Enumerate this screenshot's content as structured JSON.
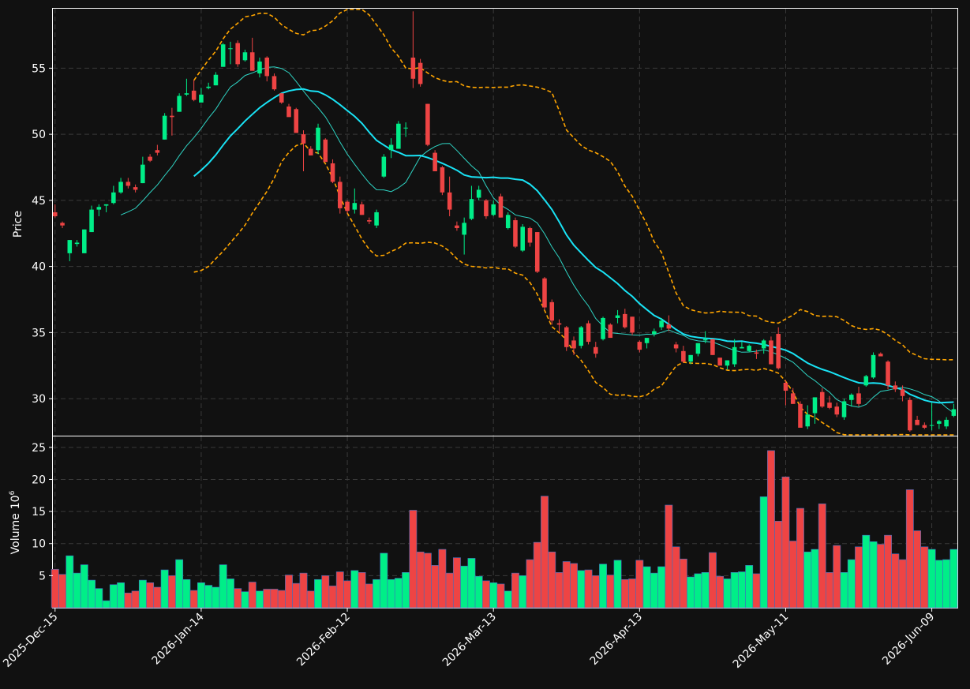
{
  "chart_data": {
    "type": "candlestick",
    "price_panel": {
      "ylabel": "Price",
      "ylim": [
        27.2,
        59.5
      ],
      "yticks": [
        30,
        35,
        40,
        45,
        50,
        55
      ],
      "grid": true
    },
    "volume_panel": {
      "ylabel": "Volume",
      "ylabel_exponent": "6",
      "ylim": [
        0,
        26.7
      ],
      "yticks": [
        5,
        10,
        15,
        20,
        25
      ],
      "grid": true
    },
    "xticks": [
      {
        "index": 0,
        "label": "2025-Dec-15"
      },
      {
        "index": 20,
        "label": "2026-Jan-14"
      },
      {
        "index": 40,
        "label": "2026-Feb-12"
      },
      {
        "index": 60,
        "label": "2026-Mar-13"
      },
      {
        "index": 80,
        "label": "2026-Apr-13"
      },
      {
        "index": 100,
        "label": "2026-May-11"
      },
      {
        "index": 120,
        "label": "2026-Jun-09"
      }
    ],
    "xlim": [
      -0.3,
      123.5
    ],
    "colors": {
      "background": "#111111",
      "up": "#00ee88",
      "down": "#ee4444",
      "volume_edge": "#3f6fbf",
      "sma_fast": "#2fd4c4",
      "sma_slow": "#19e3f5",
      "bands": "#ffa500",
      "frame": "#ffffff",
      "grid": "#3a3a3a"
    },
    "overlays": [
      {
        "kind": "sma",
        "period": 10
      },
      {
        "kind": "sma",
        "period": 20
      },
      {
        "kind": "bollinger",
        "period": 20,
        "std": 2
      }
    ],
    "candles": [
      [
        44.1,
        44.7,
        43.7,
        43.8,
        6.0
      ],
      [
        43.3,
        43.4,
        42.9,
        43.1,
        5.2
      ],
      [
        41.0,
        42.0,
        40.4,
        42.0,
        8.1
      ],
      [
        41.7,
        42.0,
        41.5,
        41.8,
        5.4
      ],
      [
        41.0,
        42.8,
        41.0,
        42.8,
        6.7
      ],
      [
        42.6,
        44.6,
        42.6,
        44.3,
        4.3
      ],
      [
        44.3,
        44.7,
        43.8,
        44.5,
        3.0
      ],
      [
        44.6,
        44.7,
        44.1,
        44.7,
        1.1
      ],
      [
        44.8,
        46.1,
        44.7,
        45.6,
        3.6
      ],
      [
        45.6,
        46.7,
        45.5,
        46.4,
        3.9
      ],
      [
        46.4,
        46.7,
        45.9,
        46.1,
        2.3
      ],
      [
        46.0,
        46.2,
        45.6,
        45.8,
        2.6
      ],
      [
        46.3,
        48.3,
        46.3,
        47.7,
        4.3
      ],
      [
        48.3,
        48.5,
        47.9,
        48.0,
        3.9
      ],
      [
        48.8,
        49.2,
        48.4,
        48.6,
        3.2
      ],
      [
        49.6,
        51.6,
        49.6,
        51.4,
        5.9
      ],
      [
        51.4,
        52.0,
        49.9,
        51.3,
        5.0
      ],
      [
        51.7,
        53.1,
        51.7,
        52.9,
        7.5
      ],
      [
        53.0,
        54.2,
        52.9,
        53.1,
        4.4
      ],
      [
        53.3,
        54.1,
        52.5,
        52.6,
        2.7
      ],
      [
        52.4,
        53.5,
        52.4,
        53.0,
        3.9
      ],
      [
        53.5,
        53.9,
        53.4,
        53.6,
        3.5
      ],
      [
        53.7,
        54.7,
        53.7,
        54.5,
        3.2
      ],
      [
        55.1,
        56.9,
        55.1,
        56.8,
        6.7
      ],
      [
        56.5,
        57.0,
        55.3,
        56.5,
        4.5
      ],
      [
        56.9,
        57.1,
        55.1,
        55.3,
        3.0
      ],
      [
        55.6,
        56.4,
        55.5,
        56.2,
        2.5
      ],
      [
        56.2,
        57.3,
        55.0,
        54.8,
        4.0
      ],
      [
        54.6,
        55.8,
        54.3,
        55.5,
        2.6
      ],
      [
        55.8,
        55.9,
        54.0,
        54.4,
        2.9
      ],
      [
        54.4,
        54.6,
        53.3,
        53.4,
        2.9
      ],
      [
        53.1,
        53.1,
        52.3,
        52.4,
        2.7
      ],
      [
        52.1,
        52.3,
        51.4,
        51.3,
        5.1
      ],
      [
        51.9,
        52.0,
        50.1,
        50.1,
        3.8
      ],
      [
        50.0,
        50.3,
        47.2,
        49.3,
        5.4
      ],
      [
        48.9,
        49.1,
        48.4,
        48.4,
        2.6
      ],
      [
        48.8,
        50.8,
        48.5,
        50.5,
        4.4
      ],
      [
        49.6,
        49.7,
        48.0,
        47.9,
        5.0
      ],
      [
        47.8,
        48.1,
        46.3,
        46.4,
        3.4
      ],
      [
        46.4,
        46.8,
        44.0,
        44.4,
        5.6
      ],
      [
        44.9,
        45.0,
        44.0,
        44.2,
        4.2
      ],
      [
        44.3,
        45.9,
        44.0,
        44.8,
        5.8
      ],
      [
        44.7,
        44.9,
        43.9,
        43.9,
        5.5
      ],
      [
        43.5,
        43.7,
        43.2,
        43.4,
        3.7
      ],
      [
        43.1,
        44.3,
        42.9,
        44.1,
        4.4
      ],
      [
        46.8,
        48.5,
        46.7,
        48.3,
        8.5
      ],
      [
        48.8,
        49.7,
        48.2,
        49.2,
        4.4
      ],
      [
        48.9,
        51.0,
        48.9,
        50.8,
        4.6
      ],
      [
        50.5,
        50.9,
        49.8,
        50.5,
        5.5
      ],
      [
        55.8,
        59.3,
        53.5,
        54.2,
        15.2
      ],
      [
        55.4,
        55.7,
        53.6,
        53.8,
        8.7
      ],
      [
        52.3,
        52.3,
        49.1,
        49.2,
        8.5
      ],
      [
        48.6,
        48.8,
        47.2,
        47.2,
        6.6
      ],
      [
        47.5,
        47.6,
        45.4,
        45.6,
        9.1
      ],
      [
        45.6,
        46.8,
        43.8,
        44.3,
        5.4
      ],
      [
        43.1,
        43.4,
        42.7,
        42.9,
        7.8
      ],
      [
        42.4,
        43.7,
        40.9,
        43.3,
        6.5
      ],
      [
        43.6,
        46.1,
        43.5,
        45.1,
        7.7
      ],
      [
        45.2,
        46.1,
        45.0,
        45.8,
        4.9
      ],
      [
        45.0,
        45.1,
        43.6,
        43.8,
        4.2
      ],
      [
        43.9,
        45.0,
        43.8,
        44.7,
        3.9
      ],
      [
        45.3,
        45.5,
        43.7,
        43.7,
        3.7
      ],
      [
        42.9,
        44.1,
        42.8,
        43.9,
        2.6
      ],
      [
        43.5,
        43.7,
        41.4,
        41.5,
        5.4
      ],
      [
        41.2,
        43.2,
        41.1,
        43.0,
        5.0
      ],
      [
        42.9,
        43.0,
        41.5,
        41.8,
        7.5
      ],
      [
        42.6,
        42.6,
        39.5,
        39.6,
        10.2
      ],
      [
        39.1,
        39.2,
        36.7,
        36.9,
        17.4
      ],
      [
        37.3,
        37.5,
        35.6,
        35.9,
        8.7
      ],
      [
        35.7,
        36.0,
        35.0,
        35.6,
        5.5
      ],
      [
        35.4,
        35.5,
        33.6,
        33.9,
        7.2
      ],
      [
        34.4,
        34.7,
        33.3,
        33.8,
        6.9
      ],
      [
        34.0,
        35.5,
        33.8,
        35.4,
        5.8
      ],
      [
        35.7,
        35.9,
        34.1,
        34.3,
        5.9
      ],
      [
        33.9,
        34.3,
        33.1,
        33.4,
        5.0
      ],
      [
        34.5,
        36.2,
        34.4,
        36.1,
        6.8
      ],
      [
        35.6,
        35.7,
        34.6,
        34.6,
        5.1
      ],
      [
        36.1,
        36.7,
        35.7,
        36.3,
        7.4
      ],
      [
        36.4,
        36.8,
        35.3,
        35.4,
        4.4
      ],
      [
        36.2,
        36.2,
        34.8,
        35.0,
        4.5
      ],
      [
        34.3,
        34.4,
        33.5,
        33.7,
        7.4
      ],
      [
        34.2,
        34.5,
        33.8,
        34.6,
        6.4
      ],
      [
        34.9,
        35.3,
        34.7,
        35.1,
        5.4
      ],
      [
        35.4,
        36.1,
        35.2,
        35.9,
        6.4
      ],
      [
        35.6,
        36.3,
        35.1,
        35.3,
        16.0
      ],
      [
        34.1,
        34.3,
        33.5,
        33.8,
        9.5
      ],
      [
        33.6,
        34.0,
        32.7,
        32.8,
        7.6
      ],
      [
        32.8,
        33.3,
        32.6,
        33.3,
        4.8
      ],
      [
        33.4,
        34.2,
        33.2,
        34.2,
        5.3
      ],
      [
        34.4,
        35.1,
        34.2,
        34.5,
        5.5
      ],
      [
        34.5,
        34.5,
        33.3,
        33.3,
        8.6
      ],
      [
        33.1,
        33.1,
        32.5,
        32.5,
        4.9
      ],
      [
        32.5,
        32.9,
        32.2,
        32.9,
        4.5
      ],
      [
        32.6,
        34.5,
        32.4,
        33.9,
        5.5
      ],
      [
        33.8,
        34.3,
        33.8,
        33.9,
        5.6
      ],
      [
        33.6,
        34.1,
        33.5,
        34.0,
        6.6
      ],
      [
        33.5,
        33.7,
        33.0,
        33.4,
        5.3
      ],
      [
        33.8,
        34.5,
        33.4,
        34.4,
        17.3
      ],
      [
        34.4,
        34.7,
        32.6,
        32.6,
        24.5
      ],
      [
        34.9,
        35.4,
        32.2,
        32.3,
        13.5
      ],
      [
        31.2,
        31.4,
        29.5,
        30.6,
        20.4
      ],
      [
        30.4,
        30.8,
        29.6,
        29.6,
        10.4
      ],
      [
        29.6,
        29.8,
        27.9,
        27.8,
        15.5
      ],
      [
        27.9,
        29.5,
        27.7,
        28.8,
        8.7
      ],
      [
        28.9,
        30.1,
        28.1,
        30.1,
        9.1
      ],
      [
        30.5,
        30.8,
        29.3,
        29.4,
        16.2
      ],
      [
        29.7,
        30.2,
        29.2,
        29.3,
        5.5
      ],
      [
        29.4,
        29.7,
        28.6,
        28.8,
        9.7
      ],
      [
        28.6,
        30.0,
        28.4,
        29.8,
        5.5
      ],
      [
        29.9,
        30.4,
        29.4,
        30.3,
        7.5
      ],
      [
        30.4,
        30.9,
        29.4,
        29.6,
        9.5
      ],
      [
        31.0,
        31.8,
        30.9,
        31.7,
        11.3
      ],
      [
        31.6,
        33.5,
        31.5,
        33.3,
        10.3
      ],
      [
        33.4,
        33.5,
        33.2,
        33.2,
        9.9
      ],
      [
        32.8,
        32.9,
        30.7,
        31.0,
        11.3
      ],
      [
        31.0,
        31.3,
        30.5,
        30.7,
        8.4
      ],
      [
        30.7,
        31.0,
        29.8,
        30.2,
        7.5
      ],
      [
        29.9,
        30.1,
        27.5,
        27.6,
        18.4
      ],
      [
        28.4,
        28.7,
        28.0,
        28.0,
        12.0
      ],
      [
        28.0,
        28.2,
        27.7,
        27.8,
        9.5
      ],
      [
        28.0,
        29.7,
        27.6,
        28.0,
        9.1
      ],
      [
        28.1,
        28.4,
        27.7,
        28.3,
        7.4
      ],
      [
        27.9,
        28.6,
        27.7,
        28.4,
        7.5
      ],
      [
        28.7,
        29.6,
        28.6,
        29.2,
        9.1
      ]
    ]
  }
}
